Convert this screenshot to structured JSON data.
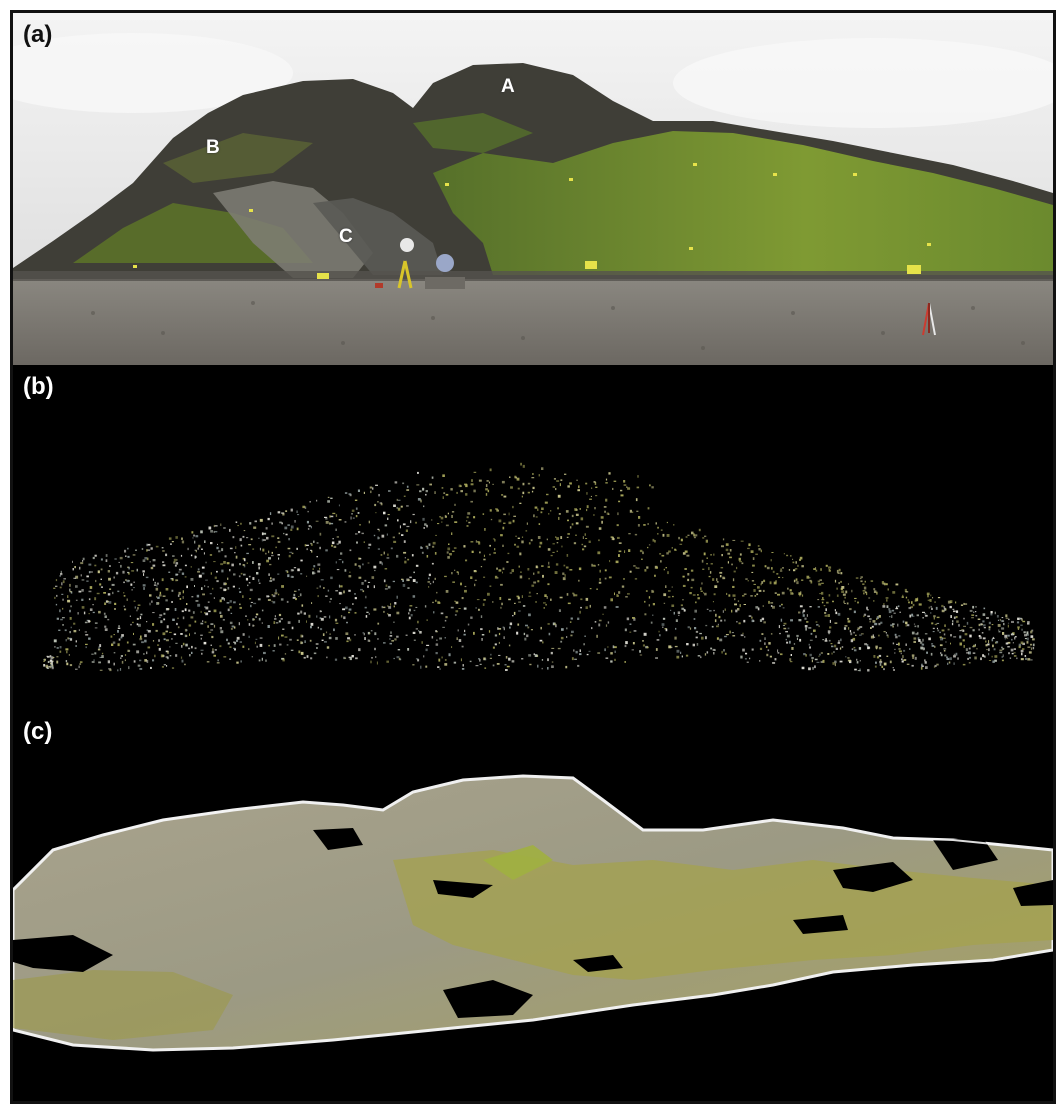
{
  "panels": [
    {
      "label": "(a)",
      "sites": [
        {
          "id": "A",
          "label": "A"
        },
        {
          "id": "B",
          "label": "B"
        },
        {
          "id": "C",
          "label": "C"
        }
      ]
    },
    {
      "label": "(b)"
    },
    {
      "label": "(c)"
    }
  ],
  "colors": {
    "sky": "#ececec",
    "rock": "#3e3d36",
    "grass": "#6f8a2a",
    "beach": "#7d7a74",
    "background": "#000000",
    "cloud_points": [
      "#d9d8cf",
      "#b9c0b4",
      "#c6c38a",
      "#a8a75a",
      "#8d9a9a",
      "#e6e4dc"
    ],
    "mesh": "#a6a08a"
  }
}
